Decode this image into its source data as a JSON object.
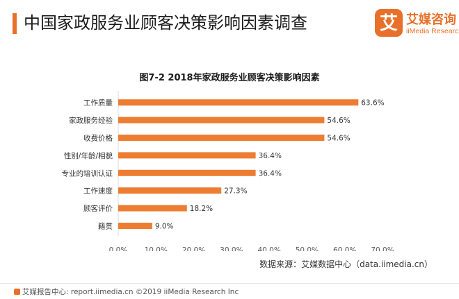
{
  "header": {
    "title": "中国家政服务业顾客决策影响因素调查"
  },
  "logo": {
    "cn": "艾媒咨询",
    "en": "iiMedia Research",
    "mark_glyph": "艾"
  },
  "colors": {
    "accent": "#e8702a",
    "bar": "#ed7d31",
    "text": "#333333",
    "axis": "#d9d9d9"
  },
  "chart_data": {
    "type": "bar",
    "orientation": "horizontal",
    "title": "图7-2  2018年家政服务业顾客决策影响因素",
    "categories": [
      "工作质量",
      "家政服务经验",
      "收费价格",
      "性别/年龄/相貌",
      "专业的培训认证",
      "工作速度",
      "顾客评价",
      "籍贯"
    ],
    "values": [
      63.6,
      54.6,
      54.6,
      36.4,
      36.4,
      27.3,
      18.2,
      9.0
    ],
    "value_labels": [
      "63.6%",
      "54.6%",
      "54.6%",
      "36.4%",
      "36.4%",
      "27.3%",
      "18.2%",
      "9.0%"
    ],
    "xticks": [
      "0.0%",
      "10.0%",
      "20.0%",
      "30.0%",
      "40.0%",
      "50.0%",
      "60.0%",
      "70.0%"
    ],
    "xlim": [
      0,
      70
    ],
    "xlabel": "",
    "ylabel": "",
    "grid": false,
    "legend": "none"
  },
  "source": "数据来源：艾媒数据中心（data.iimedia.cn）",
  "footer": {
    "text": "艾媒报告中心: report.iimedia.cn  ©2019  iiMedia Research  Inc"
  }
}
